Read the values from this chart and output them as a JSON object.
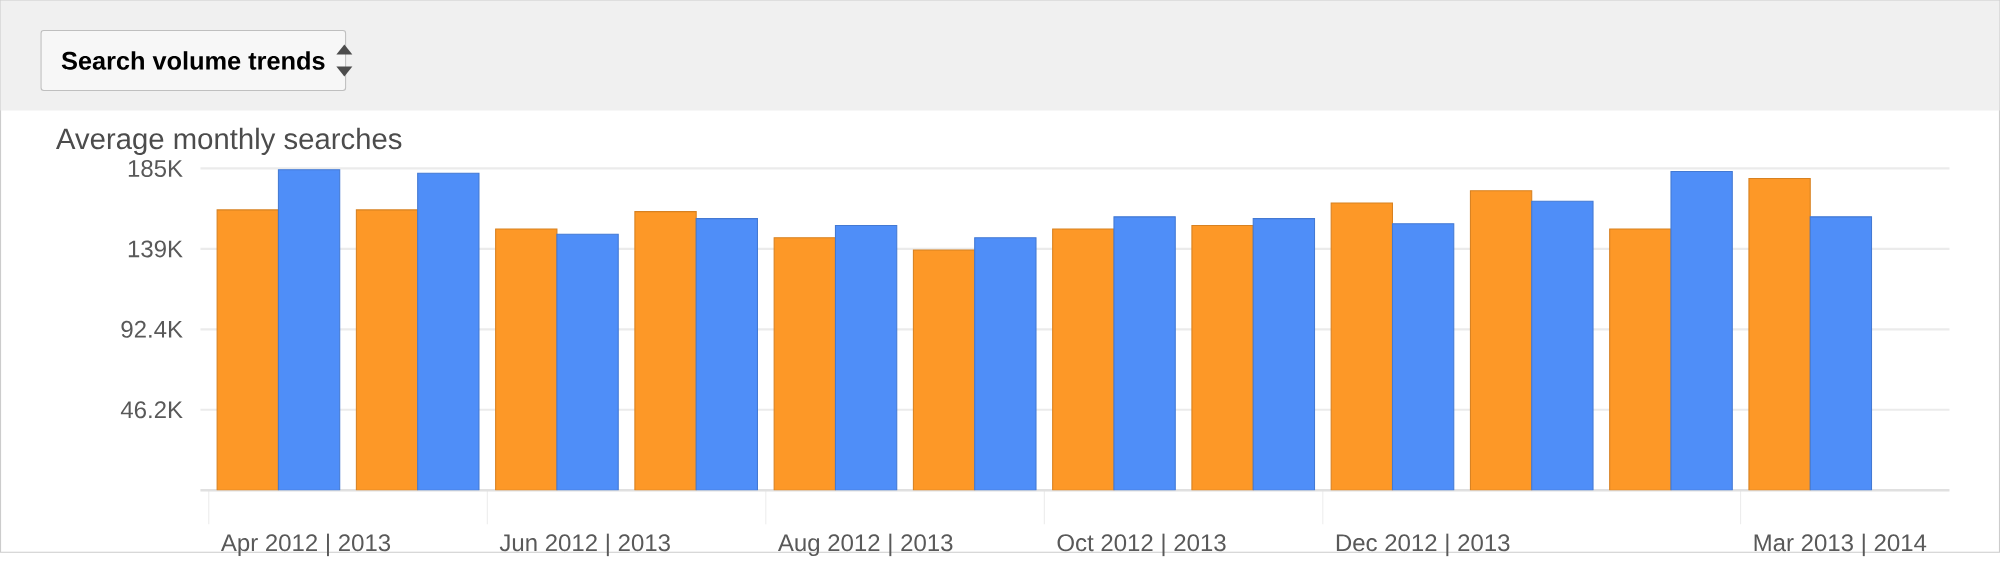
{
  "chart_data": {
    "type": "bar",
    "title": "Search volume trends",
    "ylabel": "Average monthly searches",
    "categories": [
      "Apr 2012 | 2013",
      null,
      "Jun 2012 | 2013",
      null,
      "Aug 2012 | 2013",
      null,
      "Oct 2012 | 2013",
      null,
      "Dec 2012 | 2013",
      null,
      null,
      "Mar 2013 | 2014"
    ],
    "series": [
      {
        "color": "#fd9827",
        "values": [
          161000,
          161000,
          150000,
          160000,
          145000,
          138000,
          150000,
          152000,
          165000,
          172000,
          150000,
          179000
        ]
      },
      {
        "color": "#4f8ef8",
        "values": [
          184000,
          182000,
          147000,
          156000,
          152000,
          145000,
          157000,
          156000,
          153000,
          166000,
          183000,
          157000
        ]
      }
    ],
    "ylim": [
      0,
      184800
    ],
    "yticks": [
      {
        "value": 46200,
        "label": "46.2K"
      },
      {
        "value": 92400,
        "label": "92.4K"
      },
      {
        "value": 138600,
        "label": "139K"
      },
      {
        "value": 184800,
        "label": "185K"
      }
    ],
    "grid": "y"
  }
}
